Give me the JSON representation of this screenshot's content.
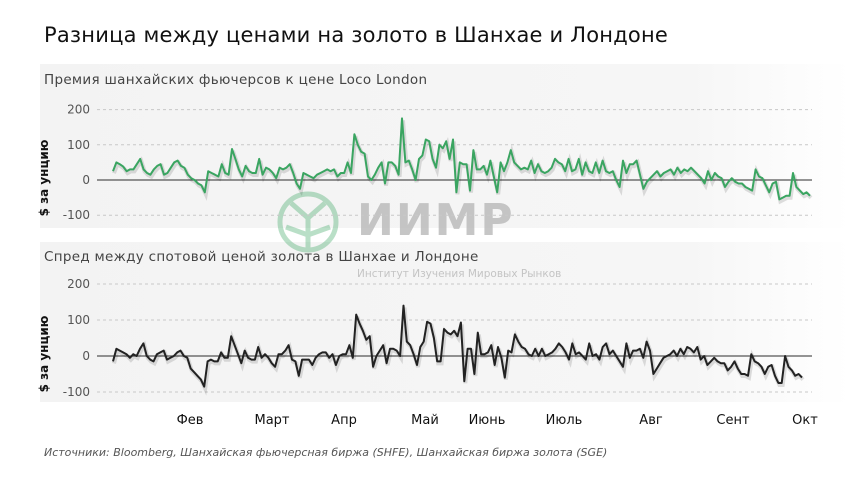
{
  "title": "Разница между ценами на золото в Шанхае и Лондоне",
  "source": "Источники: Bloomberg, Шанхайская фьючерсная биржа (SHFE), Шанхайская биржа золота (SGE)",
  "watermark": {
    "logo": "ИИМР",
    "subtitle": "Институт Изучения Мировых Рынков"
  },
  "colors": {
    "green": "#3aa561",
    "black": "#222222"
  },
  "chart_data": [
    {
      "type": "line",
      "title": "Премия шанхайских фьючерсов к цене Loco London",
      "ylabel": "$ за унцию",
      "ylim": [
        -100,
        200
      ],
      "yticks": [
        "200",
        "100",
        "0",
        "-100"
      ],
      "xticks": [
        "Фев",
        "Март",
        "Апр",
        "Май",
        "Июнь",
        "Июль",
        "Авг",
        "Сент",
        "Окт"
      ],
      "grid": true,
      "series": [
        {
          "color": "#3aa561",
          "values": [
            25,
            50,
            45,
            38,
            25,
            30,
            30,
            45,
            60,
            30,
            20,
            15,
            30,
            40,
            45,
            15,
            20,
            35,
            50,
            55,
            40,
            35,
            15,
            5,
            0,
            -10,
            -15,
            -35,
            25,
            20,
            15,
            10,
            45,
            20,
            15,
            88,
            60,
            30,
            10,
            40,
            25,
            20,
            20,
            60,
            15,
            35,
            30,
            20,
            5,
            35,
            30,
            35,
            45,
            20,
            -10,
            -25,
            20,
            15,
            10,
            5,
            15,
            20,
            25,
            30,
            25,
            30,
            10,
            20,
            20,
            50,
            20,
            130,
            100,
            80,
            75,
            10,
            0,
            15,
            35,
            50,
            -10,
            50,
            50,
            40,
            15,
            175,
            50,
            55,
            30,
            0,
            60,
            70,
            115,
            110,
            60,
            35,
            100,
            90,
            110,
            60,
            115,
            -35,
            50,
            45,
            45,
            -30,
            85,
            30,
            30,
            40,
            15,
            55,
            10,
            -35,
            50,
            25,
            50,
            85,
            50,
            40,
            30,
            35,
            30,
            55,
            20,
            45,
            25,
            20,
            25,
            35,
            60,
            50,
            45,
            25,
            60,
            25,
            30,
            60,
            15,
            50,
            25,
            20,
            50,
            20,
            55,
            25,
            20,
            25,
            0,
            -20,
            55,
            20,
            45,
            45,
            55,
            15,
            -25,
            -5,
            5,
            15,
            25,
            10,
            20,
            25,
            30,
            15,
            35,
            20,
            30,
            25,
            35,
            25,
            15,
            5,
            -10,
            25,
            0,
            20,
            10,
            5,
            -20,
            -5,
            5,
            -5,
            -10,
            -10,
            -20,
            -25,
            -30,
            30,
            10,
            5,
            -15,
            -35,
            -10,
            -5,
            -55,
            -50,
            -45,
            -45,
            20,
            -20,
            -30,
            -40,
            -35,
            -45
          ]
        }
      ]
    },
    {
      "type": "line",
      "title": "Спред между спотовой ценой золота в Шанхае и Лондоне",
      "ylabel": "$ за унцию",
      "ylim": [
        -100,
        200
      ],
      "yticks": [
        "200",
        "100",
        "0",
        "-100"
      ],
      "xticks": [
        "Фев",
        "Март",
        "Апр",
        "Май",
        "Июнь",
        "Июль",
        "Авг",
        "Сент",
        "Окт"
      ],
      "grid": true,
      "series": [
        {
          "color": "#222222",
          "values": [
            -15,
            20,
            15,
            10,
            5,
            -5,
            5,
            0,
            20,
            35,
            0,
            -10,
            -15,
            5,
            10,
            15,
            -10,
            -5,
            0,
            10,
            15,
            0,
            -5,
            -35,
            -45,
            -55,
            -65,
            -85,
            -15,
            -10,
            -15,
            -15,
            10,
            -5,
            -5,
            55,
            30,
            5,
            -20,
            15,
            -5,
            -10,
            -10,
            25,
            -5,
            5,
            -5,
            -20,
            -30,
            5,
            5,
            15,
            30,
            -10,
            -15,
            -55,
            -10,
            -10,
            -10,
            -25,
            -5,
            5,
            10,
            10,
            -5,
            5,
            -25,
            0,
            5,
            5,
            30,
            -5,
            115,
            90,
            70,
            45,
            55,
            -30,
            0,
            15,
            30,
            -20,
            20,
            20,
            15,
            0,
            140,
            40,
            30,
            5,
            -25,
            25,
            40,
            95,
            90,
            50,
            -15,
            -15,
            75,
            65,
            60,
            70,
            55,
            93,
            -70,
            20,
            20,
            -50,
            65,
            5,
            5,
            10,
            30,
            -25,
            25,
            -5,
            -60,
            15,
            10,
            60,
            40,
            25,
            20,
            5,
            0,
            20,
            0,
            20,
            0,
            5,
            10,
            20,
            35,
            25,
            10,
            -10,
            35,
            5,
            10,
            0,
            -10,
            35,
            0,
            5,
            -10,
            25,
            35,
            5,
            15,
            0,
            -15,
            -30,
            35,
            -5,
            15,
            15,
            20,
            -5,
            40,
            15,
            -50,
            -35,
            -20,
            -5,
            0,
            5,
            15,
            0,
            20,
            5,
            25,
            20,
            10,
            25,
            -10,
            0,
            -25,
            -15,
            -5,
            -15,
            -20,
            -20,
            -40,
            -30,
            -15,
            -35,
            -50,
            -50,
            -55,
            5,
            -15,
            -20,
            -30,
            -50,
            -30,
            -25,
            -55,
            -75,
            -75,
            0,
            -30,
            -40,
            -55,
            -50,
            -60
          ]
        }
      ]
    }
  ]
}
